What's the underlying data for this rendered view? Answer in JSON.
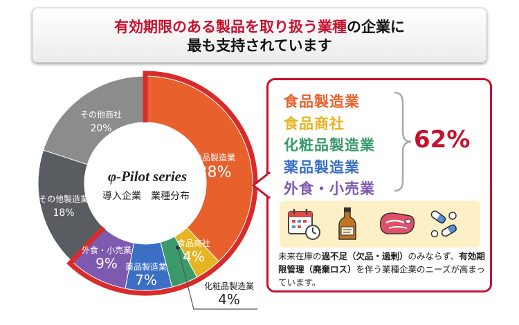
{
  "header": {
    "line1_highlight": "有効期限のある製品を取り扱う業種",
    "line1_rest": "の企業に",
    "line2": "最も支持されています"
  },
  "chart_data": {
    "type": "pie",
    "donut": true,
    "center_logo": "φ-Pilot series",
    "center_text": "導入企業　業種分布",
    "slices": [
      {
        "label": "食品製造業",
        "value": 38,
        "display": "38%",
        "color": "#e8602c"
      },
      {
        "label": "食品商社",
        "value": 4,
        "display": "4%",
        "color": "#e6b422"
      },
      {
        "label": "化粧品製造業",
        "value": 4,
        "display": "4%",
        "color": "#3a9a6c"
      },
      {
        "label": "薬品製造業",
        "value": 7,
        "display": "7%",
        "color": "#3a6fc4"
      },
      {
        "label": "外食・小売業",
        "value": 9,
        "display": "9%",
        "color": "#7e59b0"
      },
      {
        "label": "その他製造業",
        "value": 18,
        "display": "18%",
        "color": "#595d61"
      },
      {
        "label": "その他商社",
        "value": 20,
        "display": "20%",
        "color": "#8c8c8c"
      }
    ],
    "highlight_color": "#d92b2b"
  },
  "callout": {
    "categories": [
      {
        "label": "食品製造業",
        "color": "#e8602c"
      },
      {
        "label": "食品商社",
        "color": "#e6b422"
      },
      {
        "label": "化粧品製造業",
        "color": "#3a9a6c"
      },
      {
        "label": "薬品製造業",
        "color": "#3a6fc4"
      },
      {
        "label": "外食・小売業",
        "color": "#7e59b0"
      }
    ],
    "total": "62%",
    "icons": [
      "calendar-clock-icon",
      "bottle-icon",
      "meat-icon",
      "pills-icon"
    ],
    "note": {
      "p1": "未来在庫の",
      "b1": "過不足（欠品・過剰）",
      "p2": "のみならず、",
      "b2": "有効期限管理（廃棄ロス）",
      "p3": "を伴う業種企業のニーズが高まっています。"
    }
  }
}
